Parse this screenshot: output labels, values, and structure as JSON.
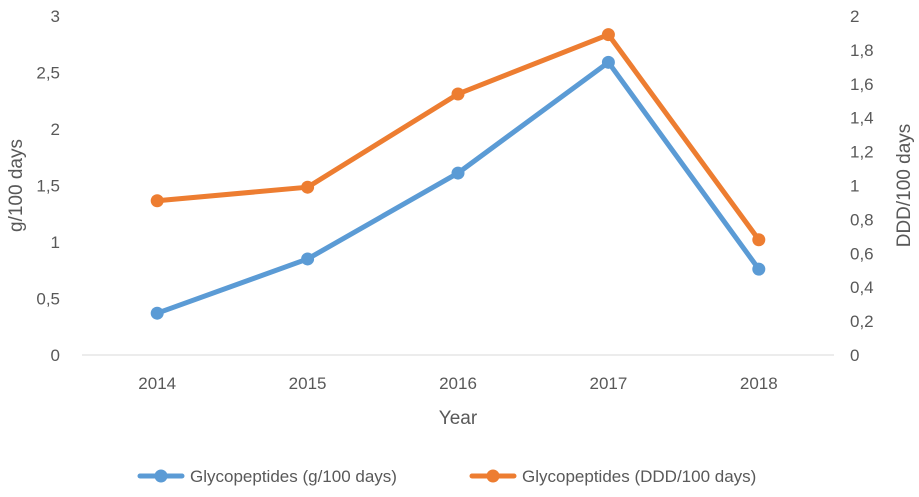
{
  "chart_data": {
    "type": "line",
    "title": "",
    "categories": [
      "2014",
      "2015",
      "2016",
      "2017",
      "2018"
    ],
    "xlabel": "Year",
    "ylabel_left": "g/100 days",
    "ylabel_right": "DDD/100 days",
    "ylim_left": [
      0,
      3
    ],
    "ylim_right": [
      0,
      2
    ],
    "yticks_left": [
      "0",
      "0,5",
      "1",
      "1,5",
      "2",
      "2,5",
      "3"
    ],
    "yticks_right": [
      "0",
      "0,2",
      "0,4",
      "0,6",
      "0,8",
      "1",
      "1,2",
      "1,4",
      "1,6",
      "1,8",
      "2"
    ],
    "grid": false,
    "legend_position": "bottom",
    "series": [
      {
        "name": "Glycopeptides (g/100 days)",
        "axis": "left",
        "color": "#5b9bd5",
        "values": [
          0.37,
          0.85,
          1.61,
          2.59,
          0.76
        ]
      },
      {
        "name": "Glycopeptides (DDD/100 days)",
        "axis": "right",
        "color": "#ed7d31",
        "values": [
          0.91,
          0.99,
          1.54,
          1.89,
          0.68
        ]
      }
    ]
  }
}
